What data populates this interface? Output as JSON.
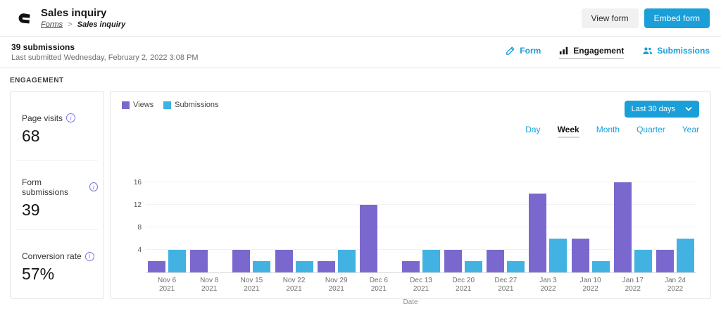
{
  "header": {
    "title": "Sales inquiry",
    "breadcrumb_parent": "Forms",
    "breadcrumb_separator": ">",
    "breadcrumb_current": "Sales inquiry",
    "view_form_label": "View form",
    "embed_form_label": "Embed form"
  },
  "subheader": {
    "submissions_summary": "39 submissions",
    "last_submitted": "Last submitted Wednesday, February 2, 2022 3:08 PM",
    "tabs": [
      {
        "label": "Form",
        "icon": "edit-icon",
        "active": false
      },
      {
        "label": "Engagement",
        "icon": "bar-chart-icon",
        "active": true
      },
      {
        "label": "Submissions",
        "icon": "people-icon",
        "active": false
      }
    ]
  },
  "engagement_panel": {
    "section_label": "ENGAGEMENT",
    "metrics": [
      {
        "label": "Page visits",
        "value": "68",
        "icon": "info-icon"
      },
      {
        "label": "Form submissions",
        "value": "39",
        "icon": "info-icon"
      },
      {
        "label": "Conversion rate",
        "value": "57%",
        "icon": "info-icon"
      }
    ],
    "range_dropdown": {
      "selected": "Last 30 days",
      "icon": "chevron-down-icon"
    },
    "period_tabs": [
      {
        "label": "Day",
        "active": false
      },
      {
        "label": "Week",
        "active": true
      },
      {
        "label": "Month",
        "active": false
      },
      {
        "label": "Quarter",
        "active": false
      },
      {
        "label": "Year",
        "active": false
      }
    ]
  },
  "chart_data": {
    "type": "bar",
    "title": "",
    "xlabel": "Date",
    "ylabel": "",
    "categories": [
      "Nov 6 2021",
      "Nov 8 2021",
      "Nov 15 2021",
      "Nov 22 2021",
      "Nov 29 2021",
      "Dec 6 2021",
      "Dec 13 2021",
      "Dec 20 2021",
      "Dec 27 2021",
      "Jan 3 2022",
      "Jan 10 2022",
      "Jan 17 2022",
      "Jan 24 2022"
    ],
    "series": [
      {
        "name": "Views",
        "color": "#7b68ce",
        "values": [
          2,
          4,
          4,
          4,
          2,
          12,
          2,
          4,
          4,
          14,
          6,
          16,
          4
        ]
      },
      {
        "name": "Submissions",
        "color": "#41b2e2",
        "values": [
          4,
          0,
          2,
          2,
          4,
          0,
          4,
          2,
          2,
          6,
          2,
          4,
          6
        ]
      }
    ],
    "ylim": [
      0,
      16
    ],
    "yticks": [
      4,
      8,
      12,
      16
    ],
    "grid": true,
    "legend_position": "top-left"
  },
  "colors": {
    "accent_blue": "#1b9fd8",
    "views_purple": "#7b68ce",
    "submissions_cyan": "#41b2e2",
    "info_icon_purple": "#7471e9"
  }
}
